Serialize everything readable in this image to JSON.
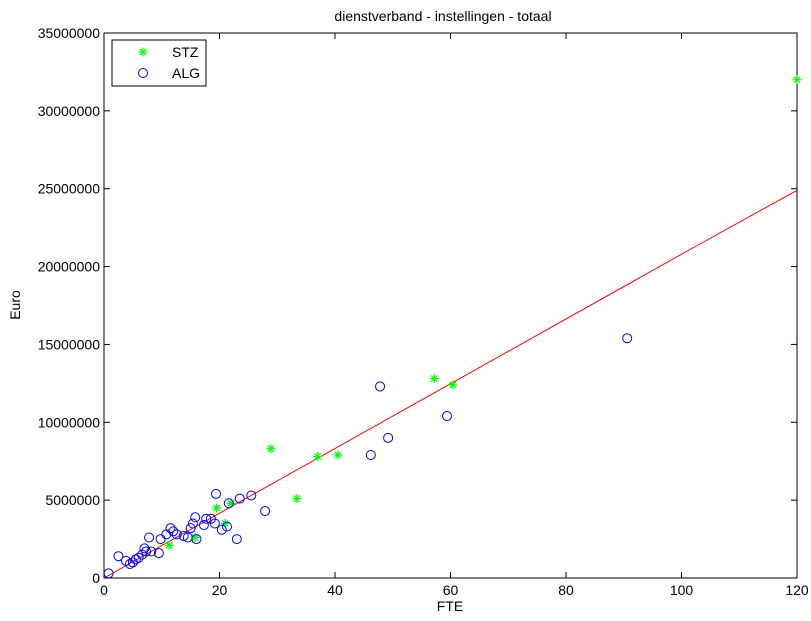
{
  "chart_data": {
    "type": "scatter",
    "title": "dienstverband - instellingen - totaal",
    "xlabel": "FTE",
    "ylabel": "Euro",
    "xlim": [
      0,
      120
    ],
    "ylim": [
      0,
      35000000
    ],
    "x_ticks": [
      "0",
      "20",
      "40",
      "60",
      "80",
      "100",
      "120"
    ],
    "y_ticks": [
      "0",
      "5000000",
      "10000000",
      "15000000",
      "20000000",
      "25000000",
      "30000000",
      "35000000"
    ],
    "x_tick_values": [
      0,
      20,
      40,
      60,
      80,
      100,
      120
    ],
    "y_tick_values": [
      0,
      5000000,
      10000000,
      15000000,
      20000000,
      25000000,
      30000000,
      35000000
    ],
    "grid": false,
    "legend_position": "top-left",
    "series": [
      {
        "name": "STZ",
        "marker": "asterisk",
        "color": "#00ff00",
        "points": [
          [
            11.3,
            2100000
          ],
          [
            15.8,
            2600000
          ],
          [
            19.5,
            4500000
          ],
          [
            21.0,
            3500000
          ],
          [
            22.0,
            4800000
          ],
          [
            28.9,
            8300000
          ],
          [
            33.4,
            5100000
          ],
          [
            37.0,
            7800000
          ],
          [
            40.5,
            7900000
          ],
          [
            57.2,
            12800000
          ],
          [
            60.4,
            12400000
          ],
          [
            120.0,
            32000000
          ]
        ]
      },
      {
        "name": "ALG",
        "marker": "circle",
        "color": "#0000ff",
        "points": [
          [
            0.8,
            300000
          ],
          [
            2.5,
            1400000
          ],
          [
            3.8,
            1100000
          ],
          [
            4.5,
            900000
          ],
          [
            5.0,
            1000000
          ],
          [
            5.5,
            1200000
          ],
          [
            6.0,
            1300000
          ],
          [
            6.6,
            1500000
          ],
          [
            7.0,
            1900000
          ],
          [
            7.3,
            1700000
          ],
          [
            7.8,
            2600000
          ],
          [
            8.2,
            1700000
          ],
          [
            9.5,
            1600000
          ],
          [
            9.8,
            2500000
          ],
          [
            10.8,
            2800000
          ],
          [
            11.5,
            3200000
          ],
          [
            12.0,
            3000000
          ],
          [
            12.6,
            2800000
          ],
          [
            13.8,
            2700000
          ],
          [
            14.5,
            2600000
          ],
          [
            15.0,
            3200000
          ],
          [
            15.4,
            3500000
          ],
          [
            15.8,
            3900000
          ],
          [
            16.0,
            2500000
          ],
          [
            17.3,
            3400000
          ],
          [
            17.7,
            3800000
          ],
          [
            18.5,
            3800000
          ],
          [
            19.2,
            3500000
          ],
          [
            19.4,
            5400000
          ],
          [
            20.4,
            3100000
          ],
          [
            21.3,
            3300000
          ],
          [
            21.6,
            4800000
          ],
          [
            23.0,
            2500000
          ],
          [
            23.5,
            5100000
          ],
          [
            25.5,
            5300000
          ],
          [
            27.9,
            4300000
          ],
          [
            46.2,
            7900000
          ],
          [
            47.8,
            12300000
          ],
          [
            49.2,
            9000000
          ],
          [
            59.4,
            10400000
          ],
          [
            90.6,
            15400000
          ]
        ]
      }
    ],
    "fit_line": {
      "color": "#ff0000",
      "points": [
        [
          0,
          0
        ],
        [
          101,
          21000000
        ],
        [
          120,
          24900000
        ]
      ]
    }
  }
}
